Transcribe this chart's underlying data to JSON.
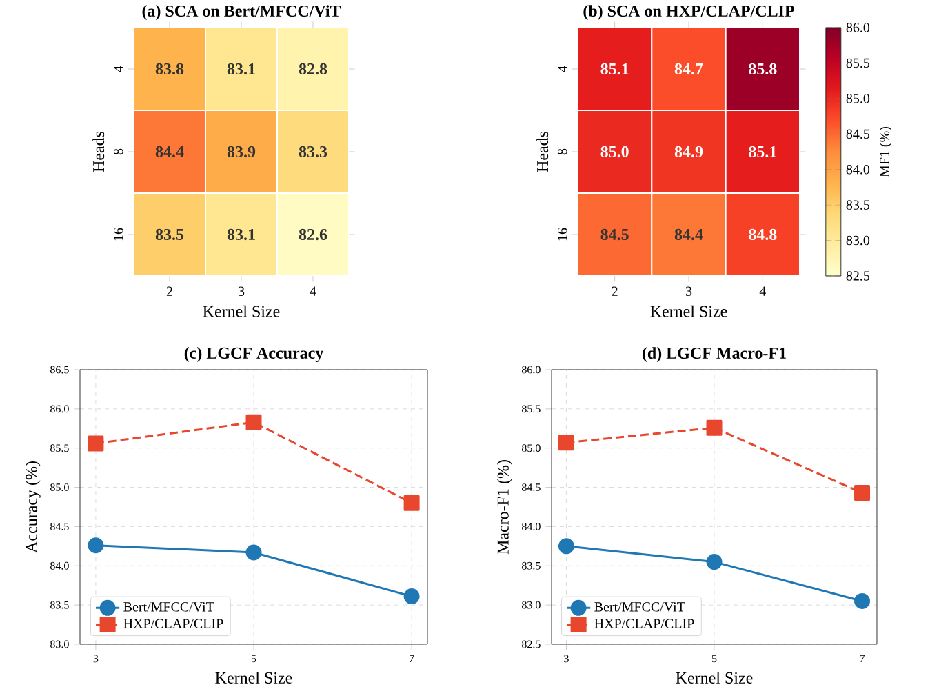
{
  "chart_data": [
    {
      "type": "heatmap",
      "title": "(a) SCA on Bert/MFCC/ViT",
      "xlabel": "Kernel Size",
      "ylabel": "Heads",
      "categories": [
        "2",
        "3",
        "4"
      ],
      "y_categories": [
        "4",
        "8",
        "16"
      ],
      "cells": [
        [
          83.8,
          83.1,
          82.8
        ],
        [
          84.4,
          83.9,
          83.3
        ],
        [
          83.5,
          83.1,
          82.6
        ]
      ],
      "data_labels": true
    },
    {
      "type": "heatmap",
      "title": "(b) SCA on HXP/CLAP/CLIP",
      "xlabel": "Kernel Size",
      "ylabel": "Heads",
      "clabel": "MF1 (%)",
      "categories": [
        "2",
        "3",
        "4"
      ],
      "y_categories": [
        "4",
        "8",
        "16"
      ],
      "cells": [
        [
          85.1,
          84.7,
          85.8
        ],
        [
          85.0,
          84.9,
          85.1
        ],
        [
          84.5,
          84.4,
          84.8
        ]
      ],
      "cell_labels": [
        [
          "85.1",
          "84.7",
          "85.8"
        ],
        [
          "85.0",
          "84.9",
          "85.1"
        ],
        [
          "84.5",
          "84.4",
          "84.8"
        ]
      ],
      "data_labels": true,
      "clim": [
        82.5,
        86.0
      ],
      "cticks": [
        {
          "value": 82.5,
          "label": "82.5"
        },
        {
          "value": 83.0,
          "label": "83.0"
        },
        {
          "value": 83.5,
          "label": "83.5"
        },
        {
          "value": 84.0,
          "label": "84.0"
        },
        {
          "value": 84.5,
          "label": "84.5"
        },
        {
          "value": 85.0,
          "label": "85.0"
        },
        {
          "value": 85.5,
          "label": "85.5"
        },
        {
          "value": 86.0,
          "label": "86.0"
        }
      ]
    },
    {
      "type": "line",
      "title": "(c) LGCF Accuracy",
      "xlabel": "Kernel Size",
      "ylabel": "Accuracy (%)",
      "x": [
        3,
        5,
        7
      ],
      "xlim": [
        2.8,
        7.2
      ],
      "xticks": [
        3,
        5,
        7
      ],
      "ylim": [
        83.0,
        86.5
      ],
      "yticks": [
        {
          "value": 83.0,
          "label": "83.0"
        },
        {
          "value": 83.5,
          "label": "83.5"
        },
        {
          "value": 84.0,
          "label": "84.0"
        },
        {
          "value": 84.5,
          "label": "84.5"
        },
        {
          "value": 85.0,
          "label": "85.0"
        },
        {
          "value": 85.5,
          "label": "85.5"
        },
        {
          "value": 86.0,
          "label": "86.0"
        },
        {
          "value": 86.5,
          "label": "86.5"
        }
      ],
      "grid": true,
      "legend": "bottom left",
      "series": [
        {
          "name": "Bert/MFCC/ViT",
          "color": "#1f77b4",
          "values": [
            84.26,
            84.17,
            83.61
          ],
          "marker": "circle",
          "line_style": "solid"
        },
        {
          "name": "HXP/CLAP/CLIP",
          "color": "#e8472e",
          "values": [
            85.56,
            85.83,
            84.8
          ],
          "marker": "square",
          "line_style": "dashed"
        }
      ]
    },
    {
      "type": "line",
      "title": "(d) LGCF Macro-F1",
      "xlabel": "Kernel Size",
      "ylabel": "Macro-F1 (%)",
      "x": [
        3,
        5,
        7
      ],
      "xlim": [
        2.8,
        7.2
      ],
      "xticks": [
        3,
        5,
        7
      ],
      "ylim": [
        82.5,
        86.0
      ],
      "yticks": [
        {
          "value": 82.5,
          "label": "82.5"
        },
        {
          "value": 83.0,
          "label": "83.0"
        },
        {
          "value": 83.5,
          "label": "83.5"
        },
        {
          "value": 84.0,
          "label": "84.0"
        },
        {
          "value": 84.5,
          "label": "84.5"
        },
        {
          "value": 85.0,
          "label": "85.0"
        },
        {
          "value": 85.5,
          "label": "85.5"
        },
        {
          "value": 86.0,
          "label": "86.0"
        }
      ],
      "grid": true,
      "legend": "bottom left",
      "series": [
        {
          "name": "Bert/MFCC/ViT",
          "color": "#1f77b4",
          "values": [
            83.75,
            83.55,
            83.05
          ],
          "marker": "circle",
          "line_style": "solid"
        },
        {
          "name": "HXP/CLAP/CLIP",
          "color": "#e8472e",
          "values": [
            85.07,
            85.26,
            84.43
          ],
          "marker": "square",
          "line_style": "dashed"
        }
      ]
    }
  ]
}
